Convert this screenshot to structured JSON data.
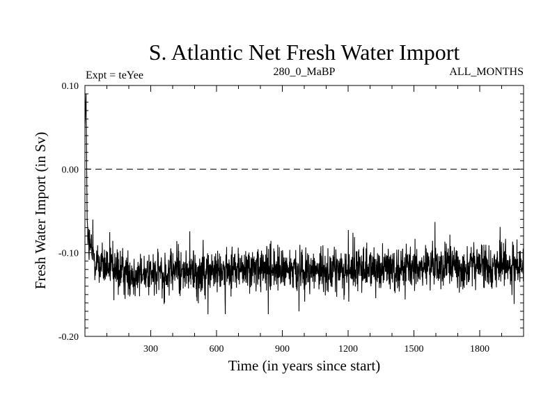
{
  "chart_data": {
    "type": "line",
    "title": "S. Atlantic Net Fresh Water Import",
    "subtitle_left": "Expt = teYee",
    "subtitle_center": "280_0_MaBP",
    "subtitle_right": "ALL_MONTHS",
    "xlabel": "Time (in years since start)",
    "ylabel": "Fresh Water Import (in Sv)",
    "xlim": [
      0,
      2000
    ],
    "ylim": [
      -0.2,
      0.1
    ],
    "xticks": [
      300,
      600,
      900,
      1200,
      1500,
      1800
    ],
    "xtick_labels": [
      "300",
      "600",
      "900",
      "1200",
      "1500",
      "1800"
    ],
    "yticks": [
      0.1,
      0.0,
      -0.1,
      -0.2
    ],
    "ytick_labels": [
      "0.10",
      "0.00",
      "-0.10",
      "-0.20"
    ],
    "reference_line": {
      "y": 0.0,
      "style": "dashed"
    },
    "series": [
      {
        "name": "S. Atlantic net fresh water import",
        "x": [
          0,
          5,
          10,
          15,
          20,
          30,
          40,
          50,
          60,
          80,
          100,
          120,
          140,
          160,
          180,
          200,
          250,
          300,
          350,
          400,
          450,
          500,
          550,
          600,
          650,
          700,
          750,
          800,
          850,
          900,
          950,
          1000,
          1050,
          1100,
          1150,
          1200,
          1250,
          1300,
          1350,
          1400,
          1450,
          1500,
          1550,
          1600,
          1650,
          1700,
          1750,
          1800,
          1850,
          1900,
          1950,
          2000
        ],
        "y": [
          0.05,
          0.09,
          -0.06,
          -0.08,
          -0.09,
          -0.1,
          -0.105,
          -0.11,
          -0.112,
          -0.115,
          -0.118,
          -0.12,
          -0.122,
          -0.123,
          -0.124,
          -0.125,
          -0.125,
          -0.125,
          -0.124,
          -0.123,
          -0.123,
          -0.122,
          -0.122,
          -0.121,
          -0.121,
          -0.12,
          -0.12,
          -0.12,
          -0.121,
          -0.12,
          -0.12,
          -0.12,
          -0.12,
          -0.121,
          -0.12,
          -0.12,
          -0.119,
          -0.119,
          -0.118,
          -0.118,
          -0.118,
          -0.117,
          -0.117,
          -0.117,
          -0.116,
          -0.116,
          -0.116,
          -0.115,
          -0.115,
          -0.115,
          -0.115,
          -0.115
        ],
        "noise_amplitude": 0.02,
        "range_min": -0.185,
        "range_max": 0.1
      }
    ]
  }
}
